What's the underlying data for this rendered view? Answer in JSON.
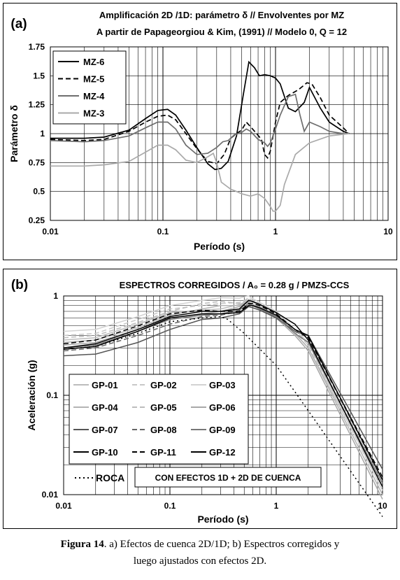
{
  "caption": {
    "label": "Figura 14",
    "text1": ". a) Efectos de cuenca 2D/1D;  b) Espectros corregidos y",
    "text2": "luego ajustados con efectos 2D."
  },
  "chart_data": [
    {
      "type": "line",
      "panel_label": "(a)",
      "title": "Amplificación 2D /1D: parámetro δ // Envolventes por MZ",
      "subtitle": "A partir de Papageorgiou & Kim, (1991) // Modelo 0,  Q = 12",
      "xlabel": "Período (s)",
      "ylabel": "Parámetro δ",
      "xscale": "log",
      "xlim": [
        0.01,
        10
      ],
      "ylim": [
        0.25,
        1.75
      ],
      "x_ticks": [
        "0.01",
        "0.1",
        "1",
        "10"
      ],
      "y_ticks": [
        "0.25",
        "0.5",
        "0.75",
        "1",
        "1.25",
        "1.5",
        "1.75"
      ],
      "grid": true,
      "legend_position": "top-left",
      "series": [
        {
          "name": "MZ-6",
          "color": "#000000",
          "dash": "solid",
          "x": [
            0.01,
            0.02,
            0.03,
            0.05,
            0.07,
            0.09,
            0.11,
            0.13,
            0.16,
            0.2,
            0.25,
            0.29,
            0.33,
            0.38,
            0.45,
            0.52,
            0.58,
            0.65,
            0.72,
            0.8,
            0.9,
            1.0,
            1.1,
            1.3,
            1.5,
            1.8,
            2.0,
            2.5,
            3.0,
            4.0,
            4.5
          ],
          "y": [
            0.96,
            0.96,
            0.97,
            1.03,
            1.13,
            1.2,
            1.21,
            1.16,
            1.03,
            0.88,
            0.74,
            0.69,
            0.7,
            0.76,
            0.98,
            1.35,
            1.62,
            1.57,
            1.5,
            1.51,
            1.5,
            1.48,
            1.43,
            1.22,
            1.19,
            1.27,
            1.4,
            1.22,
            1.1,
            1.02,
            1.0
          ]
        },
        {
          "name": "MZ-5",
          "color": "#000000",
          "dash": "dashed",
          "x": [
            0.01,
            0.02,
            0.03,
            0.05,
            0.07,
            0.09,
            0.11,
            0.13,
            0.16,
            0.2,
            0.25,
            0.3,
            0.35,
            0.4,
            0.45,
            0.5,
            0.55,
            0.6,
            0.68,
            0.75,
            0.8,
            0.85,
            0.9,
            1.0,
            1.1,
            1.3,
            1.6,
            1.9,
            2.1,
            2.5,
            3.0,
            4.0,
            4.5
          ],
          "y": [
            0.95,
            0.94,
            0.95,
            1.02,
            1.1,
            1.15,
            1.16,
            1.12,
            1.0,
            0.87,
            0.76,
            0.74,
            0.82,
            0.96,
            1.0,
            1.03,
            1.1,
            1.06,
            1.0,
            0.95,
            0.82,
            0.79,
            0.85,
            1.1,
            1.27,
            1.33,
            1.38,
            1.44,
            1.43,
            1.31,
            1.16,
            1.05,
            1.0
          ]
        },
        {
          "name": "MZ-4",
          "color": "#6e6e6e",
          "dash": "solid",
          "x": [
            0.01,
            0.02,
            0.03,
            0.05,
            0.07,
            0.09,
            0.11,
            0.13,
            0.16,
            0.2,
            0.25,
            0.3,
            0.34,
            0.38,
            0.43,
            0.5,
            0.55,
            0.6,
            0.7,
            0.8,
            0.85,
            0.9,
            1.0,
            1.1,
            1.3,
            1.5,
            1.65,
            1.8,
            2.0,
            2.5,
            3.0,
            4.0,
            4.5
          ],
          "y": [
            0.94,
            0.93,
            0.94,
            0.98,
            1.05,
            1.1,
            1.1,
            1.04,
            0.9,
            0.82,
            0.83,
            0.88,
            0.93,
            0.94,
            0.99,
            1.01,
            1.04,
            1.02,
            0.95,
            0.92,
            0.89,
            0.92,
            1.04,
            1.16,
            1.32,
            1.34,
            1.16,
            1.02,
            1.1,
            1.06,
            1.02,
            1.0,
            1.0
          ]
        },
        {
          "name": "MZ-3",
          "color": "#aaaaaa",
          "dash": "solid",
          "x": [
            0.01,
            0.02,
            0.03,
            0.05,
            0.07,
            0.09,
            0.11,
            0.13,
            0.16,
            0.2,
            0.25,
            0.28,
            0.3,
            0.33,
            0.4,
            0.45,
            0.5,
            0.6,
            0.7,
            0.8,
            0.9,
            0.95,
            1.0,
            1.1,
            1.2,
            1.5,
            2.0,
            3.0,
            4.5
          ],
          "y": [
            0.72,
            0.72,
            0.73,
            0.76,
            0.84,
            0.9,
            0.9,
            0.86,
            0.77,
            0.75,
            0.8,
            0.83,
            0.75,
            0.58,
            0.52,
            0.5,
            0.48,
            0.46,
            0.48,
            0.44,
            0.37,
            0.33,
            0.33,
            0.38,
            0.56,
            0.82,
            0.92,
            0.98,
            1.0
          ]
        }
      ]
    },
    {
      "type": "line",
      "panel_label": "(b)",
      "title": "ESPECTROS CORREGIDOS / A₀ = 0.28 g / PMZS-CCS",
      "xlabel": "Período (s)",
      "ylabel": "Aceleración (g)",
      "xscale": "log",
      "yscale": "log",
      "xlim": [
        0.01,
        10
      ],
      "ylim": [
        0.01,
        1
      ],
      "x_ticks": [
        "0.01",
        "0.1",
        "1",
        "10"
      ],
      "y_ticks": [
        "0.01",
        "0.1",
        "1"
      ],
      "grid": true,
      "legend_position": "bottom-left",
      "legend_note": "CON EFECTOS 1D + 2D DE CUENCA",
      "series": [
        {
          "name": "GP-01",
          "color": "#bcbcbc",
          "dash": "solid",
          "x": [
            0.01,
            0.02,
            0.05,
            0.1,
            0.2,
            0.3,
            0.45,
            0.5,
            0.55,
            0.6,
            0.7,
            1.0,
            1.5,
            2.0,
            10.0
          ],
          "y": [
            0.36,
            0.38,
            0.52,
            0.68,
            0.72,
            0.74,
            0.82,
            0.86,
            0.92,
            0.86,
            0.82,
            0.62,
            0.42,
            0.3,
            0.012
          ]
        },
        {
          "name": "GP-02",
          "color": "#c8c8c8",
          "dash": "dashed",
          "x": [
            0.01,
            0.02,
            0.05,
            0.1,
            0.2,
            0.3,
            0.45,
            0.5,
            0.55,
            0.6,
            0.7,
            1.0,
            1.5,
            2.0,
            10.0
          ],
          "y": [
            0.4,
            0.42,
            0.58,
            0.74,
            0.8,
            0.84,
            0.86,
            0.9,
            0.96,
            0.9,
            0.84,
            0.66,
            0.44,
            0.32,
            0.011
          ]
        },
        {
          "name": "GP-03",
          "color": "#d2d2d2",
          "dash": "solid",
          "x": [
            0.01,
            0.02,
            0.05,
            0.1,
            0.2,
            0.3,
            0.45,
            0.5,
            0.55,
            0.6,
            0.7,
            1.0,
            1.5,
            2.0,
            10.0
          ],
          "y": [
            0.44,
            0.46,
            0.62,
            0.8,
            0.9,
            0.96,
            0.95,
            0.98,
            1.0,
            0.94,
            0.86,
            0.7,
            0.46,
            0.34,
            0.011
          ]
        },
        {
          "name": "GP-04",
          "color": "#b4b4b4",
          "dash": "solid",
          "x": [
            0.01,
            0.02,
            0.05,
            0.1,
            0.2,
            0.3,
            0.45,
            0.5,
            0.55,
            0.6,
            0.7,
            1.0,
            1.5,
            2.0,
            10.0
          ],
          "y": [
            0.34,
            0.36,
            0.48,
            0.64,
            0.74,
            0.8,
            0.8,
            0.84,
            0.88,
            0.82,
            0.78,
            0.64,
            0.42,
            0.3,
            0.01
          ]
        },
        {
          "name": "GP-05",
          "color": "#bcbcbc",
          "dash": "dashed",
          "x": [
            0.01,
            0.02,
            0.05,
            0.1,
            0.2,
            0.3,
            0.45,
            0.5,
            0.55,
            0.6,
            0.7,
            1.0,
            1.5,
            2.0,
            10.0
          ],
          "y": [
            0.38,
            0.4,
            0.54,
            0.7,
            0.84,
            0.88,
            0.84,
            0.88,
            0.94,
            0.88,
            0.82,
            0.64,
            0.44,
            0.34,
            0.012
          ]
        },
        {
          "name": "GP-06",
          "color": "#a8a8a8",
          "dash": "solid",
          "x": [
            0.01,
            0.02,
            0.05,
            0.1,
            0.2,
            0.3,
            0.45,
            0.5,
            0.55,
            0.6,
            0.7,
            1.0,
            1.5,
            2.0,
            10.0
          ],
          "y": [
            0.32,
            0.34,
            0.46,
            0.6,
            0.66,
            0.7,
            0.78,
            0.82,
            0.86,
            0.82,
            0.76,
            0.6,
            0.4,
            0.28,
            0.009
          ]
        },
        {
          "name": "GP-07",
          "color": "#555555",
          "dash": "solid",
          "x": [
            0.01,
            0.02,
            0.05,
            0.1,
            0.2,
            0.3,
            0.45,
            0.5,
            0.55,
            0.6,
            0.7,
            1.0,
            1.5,
            2.0,
            10.0
          ],
          "y": [
            0.25,
            0.26,
            0.34,
            0.46,
            0.58,
            0.6,
            0.66,
            0.72,
            0.78,
            0.76,
            0.72,
            0.6,
            0.44,
            0.4,
            0.018
          ]
        },
        {
          "name": "GP-08",
          "color": "#666666",
          "dash": "dashed",
          "x": [
            0.01,
            0.02,
            0.05,
            0.1,
            0.2,
            0.3,
            0.45,
            0.5,
            0.55,
            0.6,
            0.7,
            1.0,
            1.5,
            2.0,
            10.0
          ],
          "y": [
            0.28,
            0.3,
            0.4,
            0.52,
            0.62,
            0.64,
            0.7,
            0.76,
            0.82,
            0.8,
            0.74,
            0.62,
            0.44,
            0.38,
            0.014
          ]
        },
        {
          "name": "GP-09",
          "color": "#777777",
          "dash": "solid",
          "x": [
            0.01,
            0.02,
            0.05,
            0.1,
            0.2,
            0.3,
            0.45,
            0.5,
            0.55,
            0.6,
            0.7,
            1.0,
            1.5,
            2.0,
            10.0
          ],
          "y": [
            0.3,
            0.32,
            0.44,
            0.58,
            0.64,
            0.66,
            0.72,
            0.78,
            0.84,
            0.8,
            0.74,
            0.62,
            0.42,
            0.34,
            0.013
          ]
        },
        {
          "name": "GP-10",
          "color": "#000000",
          "dash": "solid",
          "x": [
            0.01,
            0.02,
            0.05,
            0.1,
            0.2,
            0.3,
            0.45,
            0.5,
            0.55,
            0.6,
            0.7,
            1.0,
            1.5,
            2.0,
            10.0
          ],
          "y": [
            0.3,
            0.33,
            0.46,
            0.62,
            0.7,
            0.7,
            0.74,
            0.82,
            0.9,
            0.88,
            0.82,
            0.68,
            0.52,
            0.36,
            0.012
          ]
        },
        {
          "name": "GP-11",
          "color": "#000000",
          "dash": "dashed",
          "x": [
            0.01,
            0.02,
            0.05,
            0.1,
            0.2,
            0.3,
            0.45,
            0.5,
            0.55,
            0.6,
            0.7,
            1.0,
            1.5,
            2.0,
            10.0
          ],
          "y": [
            0.33,
            0.36,
            0.5,
            0.66,
            0.72,
            0.7,
            0.7,
            0.76,
            0.84,
            0.84,
            0.8,
            0.66,
            0.46,
            0.38,
            0.015
          ]
        },
        {
          "name": "GP-12",
          "color": "#000000",
          "dash": "solid",
          "x": [
            0.01,
            0.02,
            0.05,
            0.1,
            0.2,
            0.3,
            0.45,
            0.5,
            0.55,
            0.6,
            0.7,
            1.0,
            1.5,
            2.0,
            10.0
          ],
          "y": [
            0.29,
            0.31,
            0.44,
            0.6,
            0.66,
            0.66,
            0.68,
            0.74,
            0.8,
            0.8,
            0.76,
            0.64,
            0.46,
            0.4,
            0.014
          ]
        },
        {
          "name": "ROCA",
          "color": "#000000",
          "dash": "dotted",
          "x": [
            0.01,
            0.02,
            0.05,
            0.1,
            0.2,
            0.3,
            0.35,
            0.5,
            1.0,
            2.0,
            10.0
          ],
          "y": [
            0.29,
            0.31,
            0.42,
            0.55,
            0.6,
            0.62,
            0.58,
            0.42,
            0.2,
            0.07,
            0.006
          ]
        }
      ]
    }
  ]
}
